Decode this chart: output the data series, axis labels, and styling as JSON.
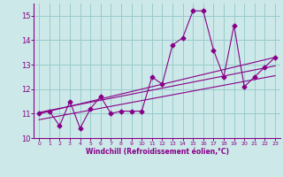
{
  "xlabel": "Windchill (Refroidissement éolien,°C)",
  "bg_color": "#cce8e8",
  "line_color": "#880088",
  "grid_color": "#99cccc",
  "xlim": [
    -0.5,
    23.5
  ],
  "ylim": [
    10.0,
    15.5
  ],
  "yticks": [
    10,
    11,
    12,
    13,
    14,
    15
  ],
  "xticks": [
    0,
    1,
    2,
    3,
    4,
    5,
    6,
    7,
    8,
    9,
    10,
    11,
    12,
    13,
    14,
    15,
    16,
    17,
    18,
    19,
    20,
    21,
    22,
    23
  ],
  "data_x": [
    0,
    1,
    2,
    3,
    4,
    5,
    6,
    7,
    8,
    9,
    10,
    11,
    12,
    13,
    14,
    15,
    16,
    17,
    18,
    19,
    20,
    21,
    22,
    23
  ],
  "data_y": [
    11.0,
    11.1,
    10.5,
    11.5,
    10.4,
    11.2,
    11.7,
    11.0,
    11.1,
    11.1,
    11.1,
    12.5,
    12.2,
    13.8,
    14.1,
    15.2,
    15.2,
    13.6,
    12.5,
    14.6,
    12.1,
    12.5,
    12.9,
    13.3
  ],
  "trend1_x": [
    0,
    23
  ],
  "trend1_y": [
    11.0,
    13.3
  ],
  "trend2_x": [
    0,
    23
  ],
  "trend2_y": [
    10.75,
    12.55
  ],
  "trend3_x": [
    0,
    23
  ],
  "trend3_y": [
    11.05,
    12.95
  ]
}
